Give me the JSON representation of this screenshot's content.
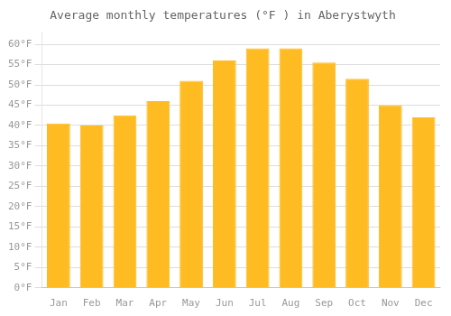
{
  "chart_data": {
    "type": "bar",
    "title": "Average monthly temperatures (°F ) in Aberystwyth",
    "categories": [
      "Jan",
      "Feb",
      "Mar",
      "Apr",
      "May",
      "Jun",
      "Jul",
      "Aug",
      "Sep",
      "Oct",
      "Nov",
      "Dec"
    ],
    "values": [
      40.5,
      40.0,
      42.5,
      46.0,
      51.0,
      56.0,
      59.0,
      59.0,
      55.5,
      51.5,
      45.0,
      42.0
    ],
    "color": "#FFBB22",
    "ylim": [
      0,
      63
    ],
    "yticks": [
      {
        "value": 0,
        "label": "0°F"
      },
      {
        "value": 5,
        "label": "5°F"
      },
      {
        "value": 10,
        "label": "10°F"
      },
      {
        "value": 15,
        "label": "15°F"
      },
      {
        "value": 20,
        "label": "20°F"
      },
      {
        "value": 25,
        "label": "25°F"
      },
      {
        "value": 30,
        "label": "30°F"
      },
      {
        "value": 35,
        "label": "35°F"
      },
      {
        "value": 40,
        "label": "40°F"
      },
      {
        "value": 45,
        "label": "45°F"
      },
      {
        "value": 50,
        "label": "50°F"
      },
      {
        "value": 55,
        "label": "55°F"
      },
      {
        "value": 60,
        "label": "60°F"
      }
    ],
    "grid": true
  }
}
